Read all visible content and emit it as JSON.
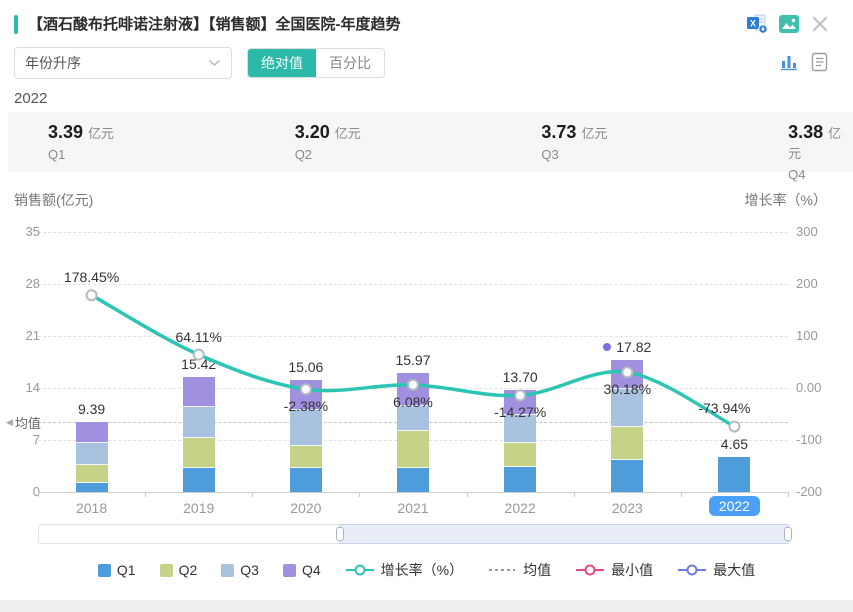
{
  "page": {
    "background": "#ffffff",
    "accent_color": "#2bb9a9"
  },
  "header": {
    "title": "【酒石酸布托啡诺注射液】【销售额】全国医院-年度趋势",
    "icons": {
      "export_excel": "excel-export-icon",
      "export_image": "image-export-icon",
      "close": "close-icon",
      "view_chart": "bar-chart-icon",
      "view_report": "report-icon"
    }
  },
  "controls": {
    "sort_select_value": "年份升序",
    "mode_absolute": "绝对值",
    "mode_percent": "百分比",
    "active_mode": "绝对值"
  },
  "summary": {
    "year": "2022",
    "unit": "亿元",
    "items": [
      {
        "label": "Q1",
        "value": "3.39"
      },
      {
        "label": "Q2",
        "value": "3.20"
      },
      {
        "label": "Q3",
        "value": "3.73"
      },
      {
        "label": "Q4",
        "value": "3.38"
      }
    ]
  },
  "chart_data": {
    "type": "bar",
    "subtype": "stacked-bars-with-growth-line",
    "left_axis": {
      "title": "销售额(亿元)",
      "ticks": [
        "35",
        "28",
        "21",
        "14",
        "7",
        "0"
      ],
      "min": 0,
      "max": 35
    },
    "right_axis": {
      "title": "增长率（%）",
      "ticks": [
        "300",
        "200",
        "100",
        "0.00",
        "-100",
        "-200"
      ],
      "min": -200,
      "max": 300
    },
    "categories": [
      "2018",
      "2019",
      "2020",
      "2021",
      "2022",
      "2023",
      "2022"
    ],
    "selected_category_index": 6,
    "series": [
      {
        "name": "Q1",
        "color": "#4e9cda",
        "values": [
          1.2,
          3.2,
          3.2,
          3.2,
          3.39,
          4.3,
          4.65
        ]
      },
      {
        "name": "Q2",
        "color": "#c5d388",
        "values": [
          2.5,
          4.1,
          3.0,
          5.0,
          3.2,
          4.5,
          0
        ]
      },
      {
        "name": "Q3",
        "color": "#a8c2df",
        "values": [
          2.9,
          4.1,
          4.8,
          3.4,
          3.73,
          5.0,
          0
        ]
      },
      {
        "name": "Q4",
        "color": "#a190e0",
        "values": [
          2.79,
          4.02,
          4.06,
          4.37,
          3.38,
          4.02,
          0
        ]
      }
    ],
    "total_labels": [
      "9.39",
      "15.42",
      "15.06",
      "15.97",
      "13.70",
      "17.82",
      "4.65"
    ],
    "growth_series": {
      "name": "增长率（%）",
      "color": "#2cc4b2",
      "values": [
        178.45,
        64.11,
        -2.38,
        6.08,
        -14.27,
        30.18,
        -73.94
      ],
      "labels": [
        "178.45%",
        "64.11%",
        "-2.38%",
        "6.08%",
        "-14.27%",
        "30.18%",
        "-73.94%"
      ],
      "label_positions": [
        "above",
        "above",
        "below",
        "below",
        "below",
        "below",
        "above-left"
      ]
    },
    "mean_line": {
      "label": "均值",
      "approx_value": 9.4
    },
    "max_point": {
      "category_index": 5,
      "marker_color": "#7a70e8"
    },
    "grid": "horizontal-dashed",
    "legend_position": "bottom"
  },
  "slider": {
    "window_start_pct": 40,
    "window_end_pct": 100
  },
  "legend": {
    "items": [
      {
        "label": "Q1",
        "marker": "square",
        "color": "#4e9cda"
      },
      {
        "label": "Q2",
        "marker": "square",
        "color": "#c5d388"
      },
      {
        "label": "Q3",
        "marker": "square",
        "color": "#a8c2df"
      },
      {
        "label": "Q4",
        "marker": "square",
        "color": "#a190e0"
      },
      {
        "label": "增长率（%）",
        "marker": "line-circle",
        "color": "#2cc4b2"
      },
      {
        "label": "均值",
        "marker": "dashed-line",
        "color": "#999999"
      },
      {
        "label": "最小值",
        "marker": "ring",
        "color": "#e8488b"
      },
      {
        "label": "最大值",
        "marker": "ring",
        "color": "#6f7be0"
      }
    ]
  }
}
